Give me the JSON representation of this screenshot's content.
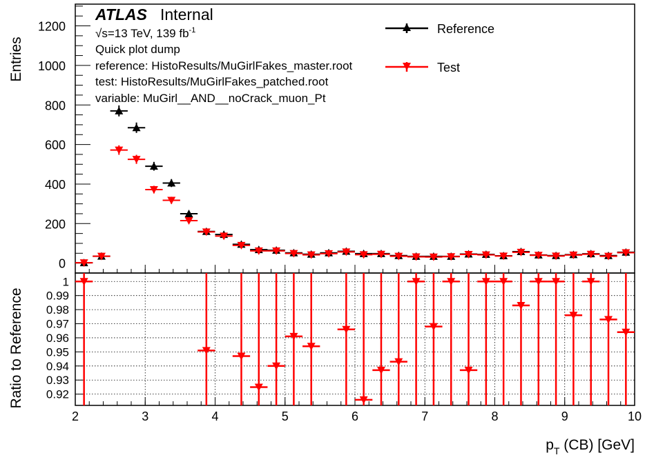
{
  "branding": {
    "atlas": "ATLAS",
    "status": "Internal"
  },
  "labels": {
    "energy_lumi": "√s=13 TeV, 139 fb",
    "lumi_exp": "-1",
    "line1": "Quick plot dump",
    "line2": "reference:  HistoResults/MuGirlFakes_master.root",
    "line3": "test: HistoResults/MuGirlFakes_patched.root",
    "line4": "variable: MuGirl__AND__noCrack_muon_Pt"
  },
  "axis_text": {
    "xlabel_main": "p",
    "xlabel_sub": "T",
    "xlabel_rest": " (CB) [GeV]",
    "ylabel_top": "Entries",
    "ylabel_bottom": "Ratio to Reference"
  },
  "colors": {
    "reference": "#000000",
    "test": "#ff0000",
    "grid": "#000000"
  },
  "chart_data": [
    {
      "type": "scatter",
      "panel": "main",
      "xlim": [
        2,
        10
      ],
      "ylim": [
        -50,
        1310
      ],
      "yticks": [
        0,
        200,
        400,
        600,
        800,
        1000,
        1200
      ],
      "legend_position": "top-right",
      "bin_width": 0.25,
      "x": [
        2.125,
        2.375,
        2.625,
        2.875,
        3.125,
        3.375,
        3.625,
        3.875,
        4.125,
        4.375,
        4.625,
        4.875,
        5.125,
        5.375,
        5.625,
        5.875,
        6.125,
        6.375,
        6.625,
        6.875,
        7.125,
        7.375,
        7.625,
        7.875,
        8.125,
        8.375,
        8.625,
        8.875,
        9.125,
        9.375,
        9.625,
        9.875
      ],
      "series": [
        {
          "name": "Reference",
          "marker": "triangle-up",
          "values": [
            2,
            35,
            770,
            685,
            490,
            405,
            250,
            160,
            145,
            95,
            68,
            65,
            52,
            45,
            52,
            60,
            48,
            48,
            38,
            34,
            34,
            34,
            46,
            44,
            37,
            58,
            41,
            38,
            43,
            47,
            38,
            55
          ]
        },
        {
          "name": "Test",
          "marker": "triangle-down",
          "values": [
            2,
            35,
            572,
            525,
            372,
            318,
            215,
            158,
            137,
            90,
            62,
            62,
            49,
            42,
            48,
            57,
            43,
            45,
            35,
            32,
            31,
            33,
            44,
            42,
            36,
            55,
            40,
            36,
            41,
            45,
            35,
            53
          ]
        }
      ]
    },
    {
      "type": "scatter",
      "panel": "ratio",
      "xlim": [
        2,
        10
      ],
      "ylim": [
        0.912,
        1.006
      ],
      "yticks": [
        0.92,
        0.93,
        0.94,
        0.95,
        0.96,
        0.97,
        0.98,
        0.99,
        1
      ],
      "xticks": [
        2,
        3,
        4,
        5,
        6,
        7,
        8,
        9,
        10
      ],
      "grid": true,
      "series": [
        {
          "name": "Test",
          "marker": "triangle-down",
          "x": [
            2.125,
            3.875,
            4.375,
            4.625,
            4.875,
            5.125,
            5.375,
            5.875,
            6.125,
            6.375,
            6.625,
            6.875,
            7.125,
            7.375,
            7.625,
            7.875,
            8.125,
            8.375,
            8.625,
            8.875,
            9.125,
            9.375,
            9.625,
            9.875
          ],
          "values": [
            1.0,
            0.951,
            0.947,
            0.925,
            0.94,
            0.961,
            0.954,
            0.966,
            0.916,
            0.937,
            0.943,
            1.0,
            0.968,
            1.0,
            0.937,
            1.0,
            1.0,
            0.983,
            1.0,
            1.0,
            0.976,
            1.0,
            0.973,
            0.964
          ]
        }
      ]
    }
  ]
}
